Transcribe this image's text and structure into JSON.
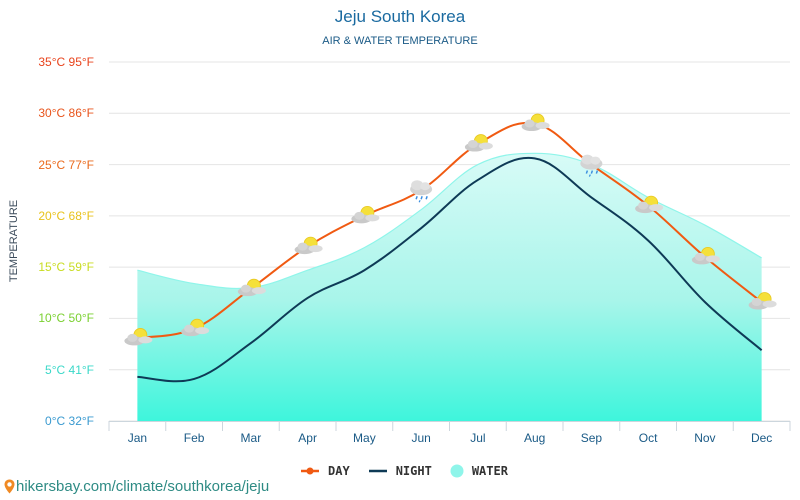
{
  "chart_data": {
    "type": "line",
    "title": "Jeju South Korea",
    "subtitle": "AIR & WATER TEMPERATURE",
    "ylabel": "TEMPERATURE",
    "xlabel": "",
    "categories": [
      "Jan",
      "Feb",
      "Mar",
      "Apr",
      "May",
      "Jun",
      "Jul",
      "Aug",
      "Sep",
      "Oct",
      "Nov",
      "Dec"
    ],
    "ylim": [
      0,
      35
    ],
    "yticks": [
      {
        "value": 35,
        "label": "35°C 95°F",
        "color": "#e8431c"
      },
      {
        "value": 30,
        "label": "30°C 86°F",
        "color": "#e8541c"
      },
      {
        "value": 25,
        "label": "25°C 77°F",
        "color": "#ea6a1c"
      },
      {
        "value": 20,
        "label": "20°C 68°F",
        "color": "#e8c21c"
      },
      {
        "value": 15,
        "label": "15°C 59°F",
        "color": "#c8dc20"
      },
      {
        "value": 10,
        "label": "10°C 50°F",
        "color": "#7ad030"
      },
      {
        "value": 5,
        "label": "5°C 41°F",
        "color": "#3ad8c8"
      },
      {
        "value": 0,
        "label": "0°C 32°F",
        "color": "#3a9ad0"
      }
    ],
    "grid": true,
    "series": [
      {
        "name": "DAY",
        "color": "#f05a12",
        "values": [
          8.1,
          9.0,
          12.9,
          17.0,
          20.0,
          22.5,
          27.0,
          29.0,
          25.0,
          21.0,
          16.0,
          11.6
        ],
        "weather": [
          "partly-cloudy",
          "partly-cloudy",
          "partly-cloudy",
          "partly-cloudy",
          "partly-cloudy",
          "rain",
          "partly-cloudy",
          "partly-cloudy",
          "rain",
          "partly-cloudy",
          "partly-cloudy",
          "partly-cloudy"
        ]
      },
      {
        "name": "NIGHT",
        "color": "#0e3a56",
        "values": [
          4.3,
          4.1,
          7.6,
          12.0,
          14.7,
          18.8,
          23.5,
          25.6,
          21.8,
          17.6,
          11.6,
          6.9
        ]
      },
      {
        "name": "WATER",
        "color": "#8ff5ea",
        "values": [
          14.7,
          13.4,
          13.0,
          14.7,
          16.9,
          20.6,
          25.0,
          26.1,
          25.0,
          21.8,
          19.1,
          15.9
        ]
      }
    ],
    "legend_position": "bottom"
  },
  "footer": {
    "url": "hikersbay.com/climate/southkorea/jeju",
    "icon": "map-pin-icon"
  }
}
